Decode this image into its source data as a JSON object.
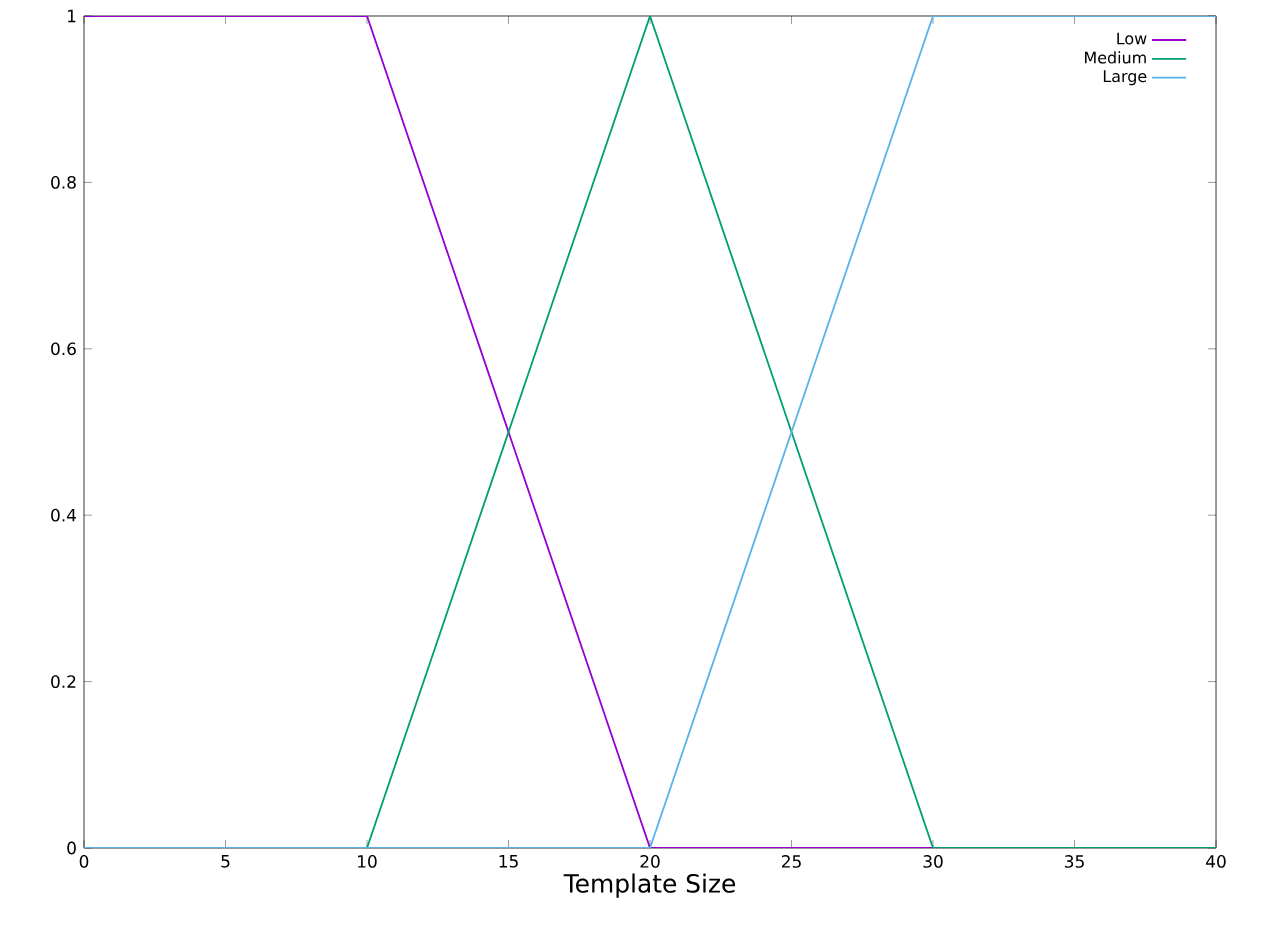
{
  "chart_data": {
    "type": "line",
    "xlabel": "Template Size",
    "series": [
      {
        "name": "Low",
        "color": "#9400d3",
        "x": [
          0,
          10,
          20,
          40
        ],
        "values": [
          1,
          1,
          0,
          0
        ]
      },
      {
        "name": "Medium",
        "color": "#009e73",
        "x": [
          0,
          10,
          20,
          30,
          40
        ],
        "values": [
          0,
          0,
          1,
          0,
          0
        ]
      },
      {
        "name": "Large",
        "color": "#56b4e9",
        "x": [
          0,
          20,
          30,
          40
        ],
        "values": [
          0,
          0,
          1,
          1
        ]
      }
    ],
    "xlim": [
      0,
      40
    ],
    "ylim": [
      0,
      1
    ],
    "xticks": [
      0,
      5,
      10,
      15,
      20,
      25,
      30,
      35,
      40
    ],
    "yticks": [
      0,
      0.2,
      0.4,
      0.6,
      0.8,
      1
    ],
    "grid": false,
    "legend": "top right",
    "marker": "none",
    "line_style": "solid"
  }
}
